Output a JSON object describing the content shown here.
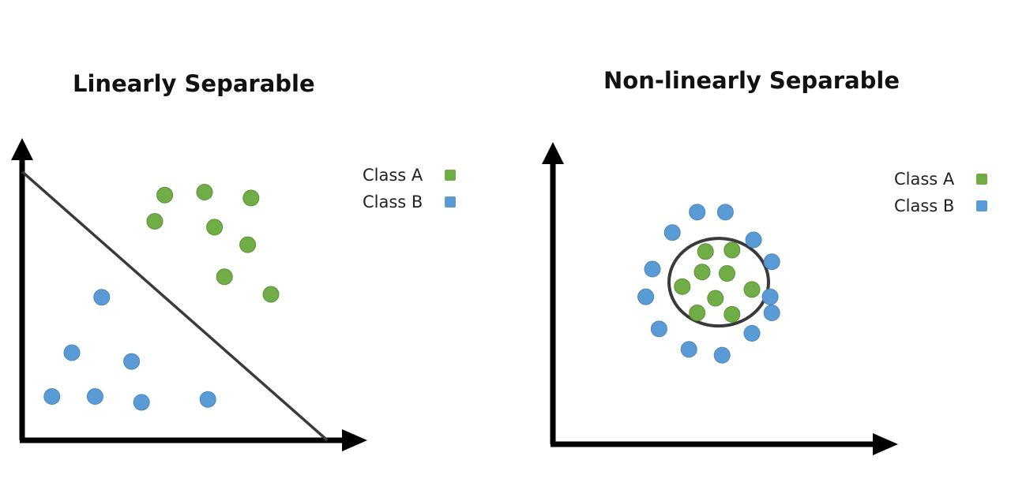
{
  "colors": {
    "class_a": "#70AD47",
    "class_a_stroke": "#5B9237",
    "class_b": "#5B9BD5",
    "class_b_stroke": "#4A86BE",
    "axis": "#000000",
    "boundary": "#3a3a3a"
  },
  "chart_data": [
    {
      "type": "scatter",
      "title": "Linearly Separable",
      "xlabel": "",
      "ylabel": "",
      "xlim": [
        0,
        10
      ],
      "ylim": [
        0,
        10
      ],
      "legend": {
        "placement": "top-right",
        "entries": [
          "Class A",
          "Class B"
        ]
      },
      "series": [
        {
          "name": "Class A",
          "points": [
            [
              4.3,
              8.4
            ],
            [
              5.5,
              8.5
            ],
            [
              6.9,
              8.3
            ],
            [
              4.0,
              7.5
            ],
            [
              5.8,
              7.3
            ],
            [
              6.8,
              6.7
            ],
            [
              6.1,
              5.6
            ],
            [
              7.5,
              5.0
            ]
          ]
        },
        {
          "name": "Class B",
          "points": [
            [
              2.4,
              4.9
            ],
            [
              1.5,
              3.0
            ],
            [
              3.3,
              2.7
            ],
            [
              0.9,
              1.5
            ],
            [
              2.2,
              1.5
            ],
            [
              3.6,
              1.3
            ],
            [
              5.6,
              1.4
            ]
          ]
        }
      ],
      "decision_boundary": {
        "type": "line",
        "from": [
          0,
          9.2
        ],
        "to": [
          9.2,
          0
        ]
      }
    },
    {
      "type": "scatter",
      "title": "Non-linearly Separable",
      "xlabel": "",
      "ylabel": "",
      "xlim": [
        0,
        10
      ],
      "ylim": [
        0,
        10
      ],
      "legend": {
        "placement": "top-right",
        "entries": [
          "Class A",
          "Class B"
        ]
      },
      "series": [
        {
          "name": "Class A",
          "points": [
            [
              4.6,
              6.6
            ],
            [
              5.4,
              6.65
            ],
            [
              4.5,
              5.9
            ],
            [
              5.25,
              5.85
            ],
            [
              3.9,
              5.4
            ],
            [
              6.0,
              5.3
            ],
            [
              4.9,
              5.0
            ],
            [
              4.35,
              4.5
            ],
            [
              5.4,
              4.45
            ]
          ]
        },
        {
          "name": "Class B",
          "points": [
            [
              4.35,
              7.95
            ],
            [
              5.2,
              7.95
            ],
            [
              3.6,
              7.25
            ],
            [
              6.05,
              7.0
            ],
            [
              3.0,
              6.0
            ],
            [
              6.6,
              6.25
            ],
            [
              2.8,
              5.05
            ],
            [
              6.55,
              5.05
            ],
            [
              3.2,
              3.95
            ],
            [
              6.6,
              4.5
            ],
            [
              4.1,
              3.25
            ],
            [
              6.0,
              3.8
            ],
            [
              5.1,
              3.05
            ]
          ]
        }
      ],
      "decision_boundary": {
        "type": "circle",
        "center": [
          5.0,
          5.55
        ],
        "radius": 1.5
      }
    }
  ]
}
